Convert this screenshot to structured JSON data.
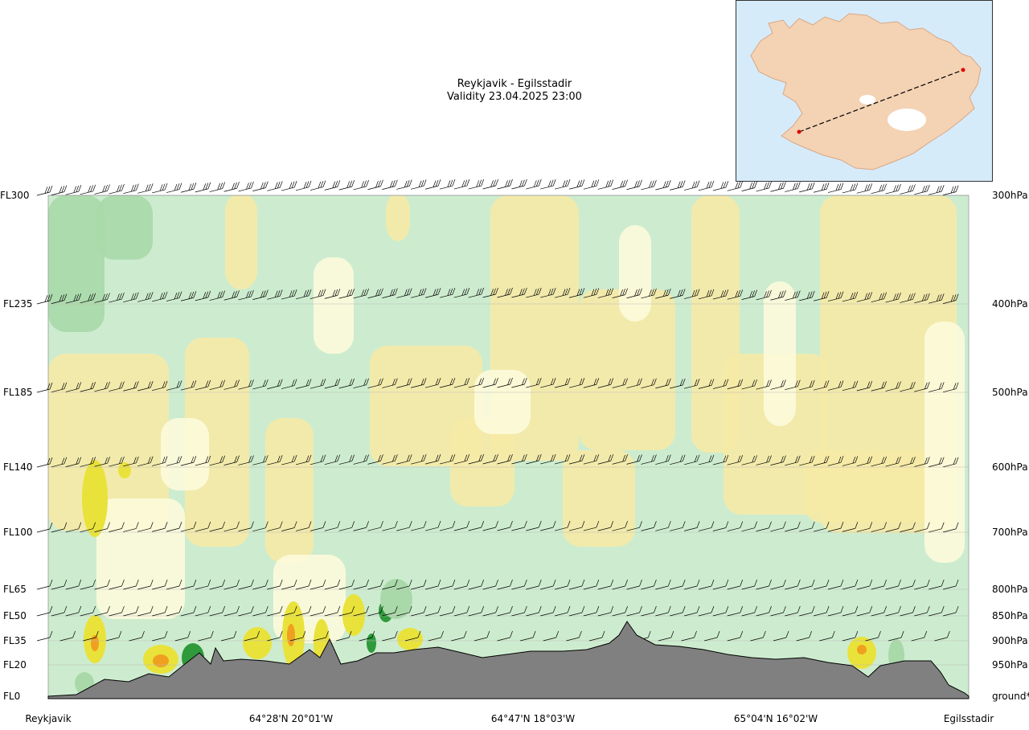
{
  "title": {
    "line1": "Reykjavik - Egilsstadir",
    "line2": "Validity 23.04.2025 23:00"
  },
  "chart_data": {
    "type": "heatmap",
    "levels_left": [
      "FL300",
      "FL235",
      "FL185",
      "FL140",
      "FL100",
      "FL65",
      "FL50",
      "FL35",
      "FL20",
      "FL0"
    ],
    "levels_right": [
      "300hPa",
      "400hPa",
      "500hPa",
      "600hPa",
      "700hPa",
      "800hPa",
      "850hPa",
      "900hPa",
      "950hPa",
      "ground*"
    ],
    "x_labels": [
      "Reykjavik",
      "64°28'N 20°01'W",
      "64°47'N 18°03'W",
      "65°04'N 16°02'W",
      "Egilsstadir"
    ],
    "grid": true,
    "colors": {
      "light_green": "#cdeccf",
      "mid_green": "#a9d9a9",
      "dark_green": "#2f9a3b",
      "pale_yellow": "#fdfbdc",
      "yellow": "#f6eaa6",
      "strong_yellow": "#e9e23a",
      "orange": "#f0a020",
      "terrain": "#808080",
      "sea": "#d6ebfa",
      "land": "#f4cfae"
    }
  },
  "inset_map": {
    "route_start": "Reykjavik",
    "route_end": "Egilsstadir"
  }
}
